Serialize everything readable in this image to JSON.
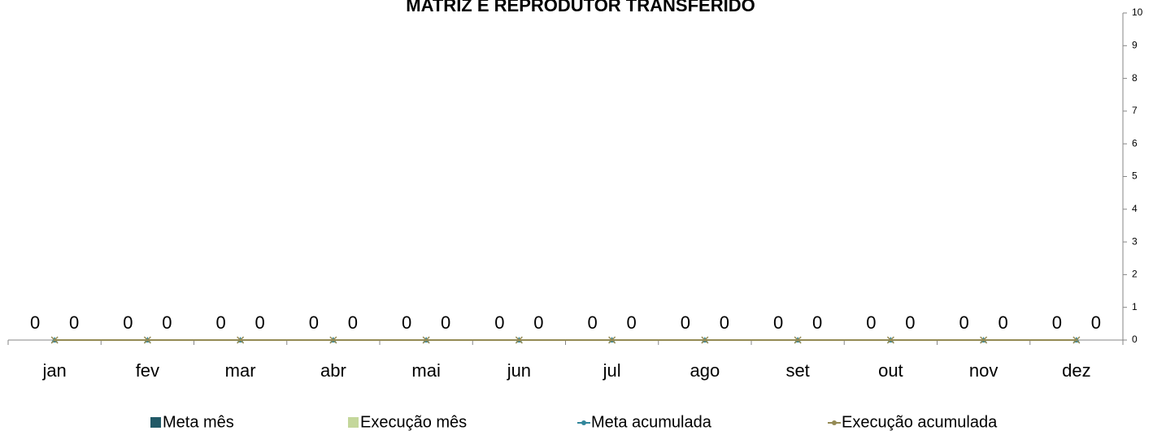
{
  "chart_data": {
    "type": "bar",
    "title": "MATRIZ E REPRODUTOR TRANSFERIDO",
    "categories": [
      "jan",
      "fev",
      "mar",
      "abr",
      "mai",
      "jun",
      "jul",
      "ago",
      "set",
      "out",
      "nov",
      "dez"
    ],
    "series": [
      {
        "name": "Meta mês",
        "type": "bar",
        "color": "#215967",
        "values": [
          0,
          0,
          0,
          0,
          0,
          0,
          0,
          0,
          0,
          0,
          0,
          0
        ]
      },
      {
        "name": "Execução mês",
        "type": "bar",
        "color": "#c4d79b",
        "values": [
          0,
          0,
          0,
          0,
          0,
          0,
          0,
          0,
          0,
          0,
          0,
          0
        ]
      },
      {
        "name": "Meta acumulada",
        "type": "line",
        "color": "#31869b",
        "values": [
          0,
          0,
          0,
          0,
          0,
          0,
          0,
          0,
          0,
          0,
          0,
          0
        ]
      },
      {
        "name": "Execução acumulada",
        "type": "line",
        "color": "#948a54",
        "values": [
          0,
          0,
          0,
          0,
          0,
          0,
          0,
          0,
          0,
          0,
          0,
          0
        ]
      }
    ],
    "ylim": [
      0,
      10
    ],
    "yticks": [
      0,
      1,
      2,
      3,
      4,
      5,
      6,
      7,
      8,
      9,
      10
    ],
    "y_axis_side": "right",
    "legend": "bottom"
  }
}
